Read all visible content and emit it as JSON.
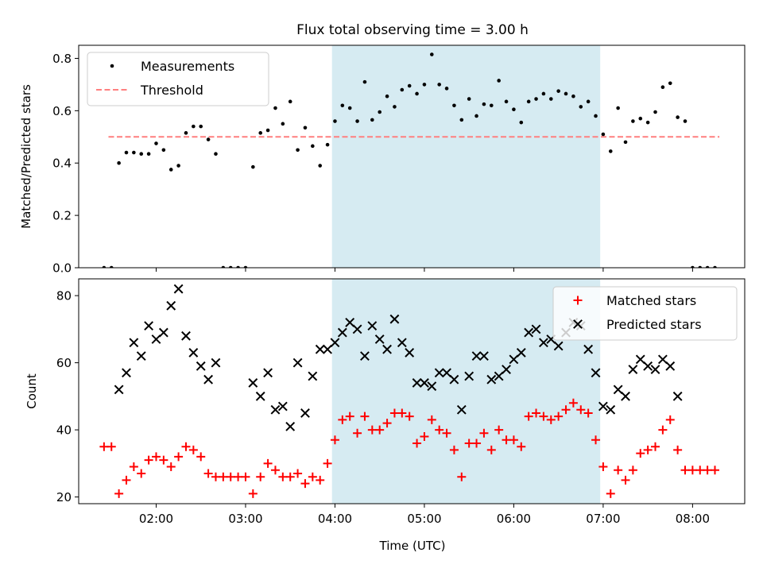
{
  "title": "Flux total observing time = 3.00 h",
  "xlabel": "Time (UTC)",
  "colors": {
    "highlight": "#add8e6",
    "threshold": "#ff7f7f",
    "measurements": "#000000",
    "matched": "#ff0000",
    "predicted": "#000000"
  },
  "chart_data": [
    {
      "type": "scatter",
      "title": "Flux total observing time = 3.00 h",
      "xlabel": "",
      "ylabel": "Matched/Predicted stars",
      "xlim": [
        "01:08",
        "08:35"
      ],
      "ylim": [
        0,
        0.85
      ],
      "yticks": [
        0.0,
        0.2,
        0.4,
        0.6,
        0.8
      ],
      "ytick_labels": [
        "0.0",
        "0.2",
        "0.4",
        "0.6",
        "0.8"
      ],
      "xticks": [
        "02:00",
        "03:00",
        "04:00",
        "05:00",
        "06:00",
        "07:00",
        "08:00"
      ],
      "highlight_span": [
        "03:58",
        "06:58"
      ],
      "threshold": {
        "name": "Threshold",
        "value": 0.5,
        "x": [
          "01:28",
          "08:18"
        ]
      },
      "legend": {
        "placement": "upper-left",
        "entries": [
          "Measurements",
          "Threshold"
        ]
      },
      "series": [
        {
          "name": "Measurements",
          "marker": "dot",
          "points": [
            [
              "01:25",
              0
            ],
            [
              "01:30",
              0
            ],
            [
              "01:35",
              0.4
            ],
            [
              "01:40",
              0.44
            ],
            [
              "01:45",
              0.44
            ],
            [
              "01:50",
              0.435
            ],
            [
              "01:55",
              0.435
            ],
            [
              "02:00",
              0.475
            ],
            [
              "02:05",
              0.45
            ],
            [
              "02:10",
              0.375
            ],
            [
              "02:15",
              0.39
            ],
            [
              "02:20",
              0.515
            ],
            [
              "02:25",
              0.54
            ],
            [
              "02:30",
              0.54
            ],
            [
              "02:35",
              0.49
            ],
            [
              "02:40",
              0.435
            ],
            [
              "02:45",
              0
            ],
            [
              "02:50",
              0
            ],
            [
              "02:55",
              0
            ],
            [
              "03:00",
              0
            ],
            [
              "03:05",
              0.385
            ],
            [
              "03:10",
              0.515
            ],
            [
              "03:15",
              0.525
            ],
            [
              "03:20",
              0.61
            ],
            [
              "03:25",
              0.55
            ],
            [
              "03:30",
              0.635
            ],
            [
              "03:35",
              0.45
            ],
            [
              "03:40",
              0.535
            ],
            [
              "03:45",
              0.465
            ],
            [
              "03:50",
              0.39
            ],
            [
              "03:55",
              0.47
            ],
            [
              "04:00",
              0.56
            ],
            [
              "04:05",
              0.62
            ],
            [
              "04:10",
              0.61
            ],
            [
              "04:15",
              0.56
            ],
            [
              "04:20",
              0.71
            ],
            [
              "04:25",
              0.565
            ],
            [
              "04:30",
              0.595
            ],
            [
              "04:35",
              0.655
            ],
            [
              "04:40",
              0.615
            ],
            [
              "04:45",
              0.68
            ],
            [
              "04:50",
              0.695
            ],
            [
              "04:55",
              0.665
            ],
            [
              "05:00",
              0.7
            ],
            [
              "05:05",
              0.815
            ],
            [
              "05:10",
              0.7
            ],
            [
              "05:15",
              0.685
            ],
            [
              "05:20",
              0.62
            ],
            [
              "05:25",
              0.565
            ],
            [
              "05:30",
              0.645
            ],
            [
              "05:35",
              0.58
            ],
            [
              "05:40",
              0.625
            ],
            [
              "05:45",
              0.62
            ],
            [
              "05:50",
              0.715
            ],
            [
              "05:55",
              0.635
            ],
            [
              "06:00",
              0.605
            ],
            [
              "06:05",
              0.555
            ],
            [
              "06:10",
              0.635
            ],
            [
              "06:15",
              0.645
            ],
            [
              "06:20",
              0.665
            ],
            [
              "06:25",
              0.645
            ],
            [
              "06:30",
              0.675
            ],
            [
              "06:35",
              0.665
            ],
            [
              "06:40",
              0.655
            ],
            [
              "06:45",
              0.615
            ],
            [
              "06:50",
              0.635
            ],
            [
              "06:55",
              0.58
            ],
            [
              "07:00",
              0.51
            ],
            [
              "07:05",
              0.445
            ],
            [
              "07:10",
              0.61
            ],
            [
              "07:15",
              0.48
            ],
            [
              "07:20",
              0.56
            ],
            [
              "07:25",
              0.57
            ],
            [
              "07:30",
              0.555
            ],
            [
              "07:35",
              0.595
            ],
            [
              "07:40",
              0.69
            ],
            [
              "07:45",
              0.705
            ],
            [
              "07:50",
              0.575
            ],
            [
              "07:55",
              0.56
            ],
            [
              "08:00",
              0
            ],
            [
              "08:05",
              0
            ],
            [
              "08:10",
              0
            ],
            [
              "08:15",
              0
            ]
          ]
        }
      ]
    },
    {
      "type": "scatter",
      "title": "",
      "xlabel": "Time (UTC)",
      "ylabel": "Count",
      "xlim": [
        "01:08",
        "08:35"
      ],
      "ylim": [
        18,
        85
      ],
      "yticks": [
        20,
        40,
        60,
        80
      ],
      "ytick_labels": [
        "20",
        "40",
        "60",
        "80"
      ],
      "xticks": [
        "02:00",
        "03:00",
        "04:00",
        "05:00",
        "06:00",
        "07:00",
        "08:00"
      ],
      "highlight_span": [
        "03:58",
        "06:58"
      ],
      "legend": {
        "placement": "upper-right",
        "entries": [
          "Matched stars",
          "Predicted stars"
        ]
      },
      "series": [
        {
          "name": "Matched stars",
          "marker": "plus",
          "points": [
            [
              "01:25",
              35
            ],
            [
              "01:30",
              35
            ],
            [
              "01:35",
              21
            ],
            [
              "01:40",
              25
            ],
            [
              "01:45",
              29
            ],
            [
              "01:50",
              27
            ],
            [
              "01:55",
              31
            ],
            [
              "02:00",
              32
            ],
            [
              "02:05",
              31
            ],
            [
              "02:10",
              29
            ],
            [
              "02:15",
              32
            ],
            [
              "02:20",
              35
            ],
            [
              "02:25",
              34
            ],
            [
              "02:30",
              32
            ],
            [
              "02:35",
              27
            ],
            [
              "02:40",
              26
            ],
            [
              "02:45",
              26
            ],
            [
              "02:50",
              26
            ],
            [
              "02:55",
              26
            ],
            [
              "03:00",
              26
            ],
            [
              "03:05",
              21
            ],
            [
              "03:10",
              26
            ],
            [
              "03:15",
              30
            ],
            [
              "03:20",
              28
            ],
            [
              "03:25",
              26
            ],
            [
              "03:30",
              26
            ],
            [
              "03:35",
              27
            ],
            [
              "03:40",
              24
            ],
            [
              "03:45",
              26
            ],
            [
              "03:50",
              25
            ],
            [
              "03:55",
              30
            ],
            [
              "04:00",
              37
            ],
            [
              "04:05",
              43
            ],
            [
              "04:10",
              44
            ],
            [
              "04:15",
              39
            ],
            [
              "04:20",
              44
            ],
            [
              "04:25",
              40
            ],
            [
              "04:30",
              40
            ],
            [
              "04:35",
              42
            ],
            [
              "04:40",
              45
            ],
            [
              "04:45",
              45
            ],
            [
              "04:50",
              44
            ],
            [
              "04:55",
              36
            ],
            [
              "05:00",
              38
            ],
            [
              "05:05",
              43
            ],
            [
              "05:10",
              40
            ],
            [
              "05:15",
              39
            ],
            [
              "05:20",
              34
            ],
            [
              "05:25",
              26
            ],
            [
              "05:30",
              36
            ],
            [
              "05:35",
              36
            ],
            [
              "05:40",
              39
            ],
            [
              "05:45",
              34
            ],
            [
              "05:50",
              40
            ],
            [
              "05:55",
              37
            ],
            [
              "06:00",
              37
            ],
            [
              "06:05",
              35
            ],
            [
              "06:10",
              44
            ],
            [
              "06:15",
              45
            ],
            [
              "06:20",
              44
            ],
            [
              "06:25",
              43
            ],
            [
              "06:30",
              44
            ],
            [
              "06:35",
              46
            ],
            [
              "06:40",
              48
            ],
            [
              "06:45",
              46
            ],
            [
              "06:50",
              45
            ],
            [
              "06:55",
              37
            ],
            [
              "07:00",
              29
            ],
            [
              "07:05",
              21
            ],
            [
              "07:10",
              28
            ],
            [
              "07:15",
              25
            ],
            [
              "07:20",
              28
            ],
            [
              "07:25",
              33
            ],
            [
              "07:30",
              34
            ],
            [
              "07:35",
              35
            ],
            [
              "07:40",
              40
            ],
            [
              "07:45",
              43
            ],
            [
              "07:50",
              34
            ],
            [
              "07:55",
              28
            ],
            [
              "08:00",
              28
            ],
            [
              "08:05",
              28
            ],
            [
              "08:10",
              28
            ],
            [
              "08:15",
              28
            ]
          ]
        },
        {
          "name": "Predicted stars",
          "marker": "x",
          "points": [
            [
              "01:35",
              52
            ],
            [
              "01:40",
              57
            ],
            [
              "01:45",
              66
            ],
            [
              "01:50",
              62
            ],
            [
              "01:55",
              71
            ],
            [
              "02:00",
              67
            ],
            [
              "02:05",
              69
            ],
            [
              "02:10",
              77
            ],
            [
              "02:15",
              82
            ],
            [
              "02:20",
              68
            ],
            [
              "02:25",
              63
            ],
            [
              "02:30",
              59
            ],
            [
              "02:35",
              55
            ],
            [
              "02:40",
              60
            ],
            [
              "03:05",
              54
            ],
            [
              "03:10",
              50
            ],
            [
              "03:15",
              57
            ],
            [
              "03:20",
              46
            ],
            [
              "03:25",
              47
            ],
            [
              "03:30",
              41
            ],
            [
              "03:35",
              60
            ],
            [
              "03:40",
              45
            ],
            [
              "03:45",
              56
            ],
            [
              "03:50",
              64
            ],
            [
              "03:55",
              64
            ],
            [
              "04:00",
              66
            ],
            [
              "04:05",
              69
            ],
            [
              "04:10",
              72
            ],
            [
              "04:15",
              70
            ],
            [
              "04:20",
              62
            ],
            [
              "04:25",
              71
            ],
            [
              "04:30",
              67
            ],
            [
              "04:35",
              64
            ],
            [
              "04:40",
              73
            ],
            [
              "04:45",
              66
            ],
            [
              "04:50",
              63
            ],
            [
              "04:55",
              54
            ],
            [
              "05:00",
              54
            ],
            [
              "05:05",
              53
            ],
            [
              "05:10",
              57
            ],
            [
              "05:15",
              57
            ],
            [
              "05:20",
              55
            ],
            [
              "05:25",
              46
            ],
            [
              "05:30",
              56
            ],
            [
              "05:35",
              62
            ],
            [
              "05:40",
              62
            ],
            [
              "05:45",
              55
            ],
            [
              "05:50",
              56
            ],
            [
              "05:55",
              58
            ],
            [
              "06:00",
              61
            ],
            [
              "06:05",
              63
            ],
            [
              "06:10",
              69
            ],
            [
              "06:15",
              70
            ],
            [
              "06:20",
              66
            ],
            [
              "06:25",
              67
            ],
            [
              "06:30",
              65
            ],
            [
              "06:35",
              69
            ],
            [
              "06:40",
              72
            ],
            [
              "06:45",
              71
            ],
            [
              "06:50",
              64
            ],
            [
              "06:55",
              57
            ],
            [
              "07:00",
              47
            ],
            [
              "07:05",
              46
            ],
            [
              "07:10",
              52
            ],
            [
              "07:15",
              50
            ],
            [
              "07:20",
              58
            ],
            [
              "07:25",
              61
            ],
            [
              "07:30",
              59
            ],
            [
              "07:35",
              58
            ],
            [
              "07:40",
              61
            ],
            [
              "07:45",
              59
            ],
            [
              "07:50",
              50
            ]
          ]
        }
      ]
    }
  ]
}
